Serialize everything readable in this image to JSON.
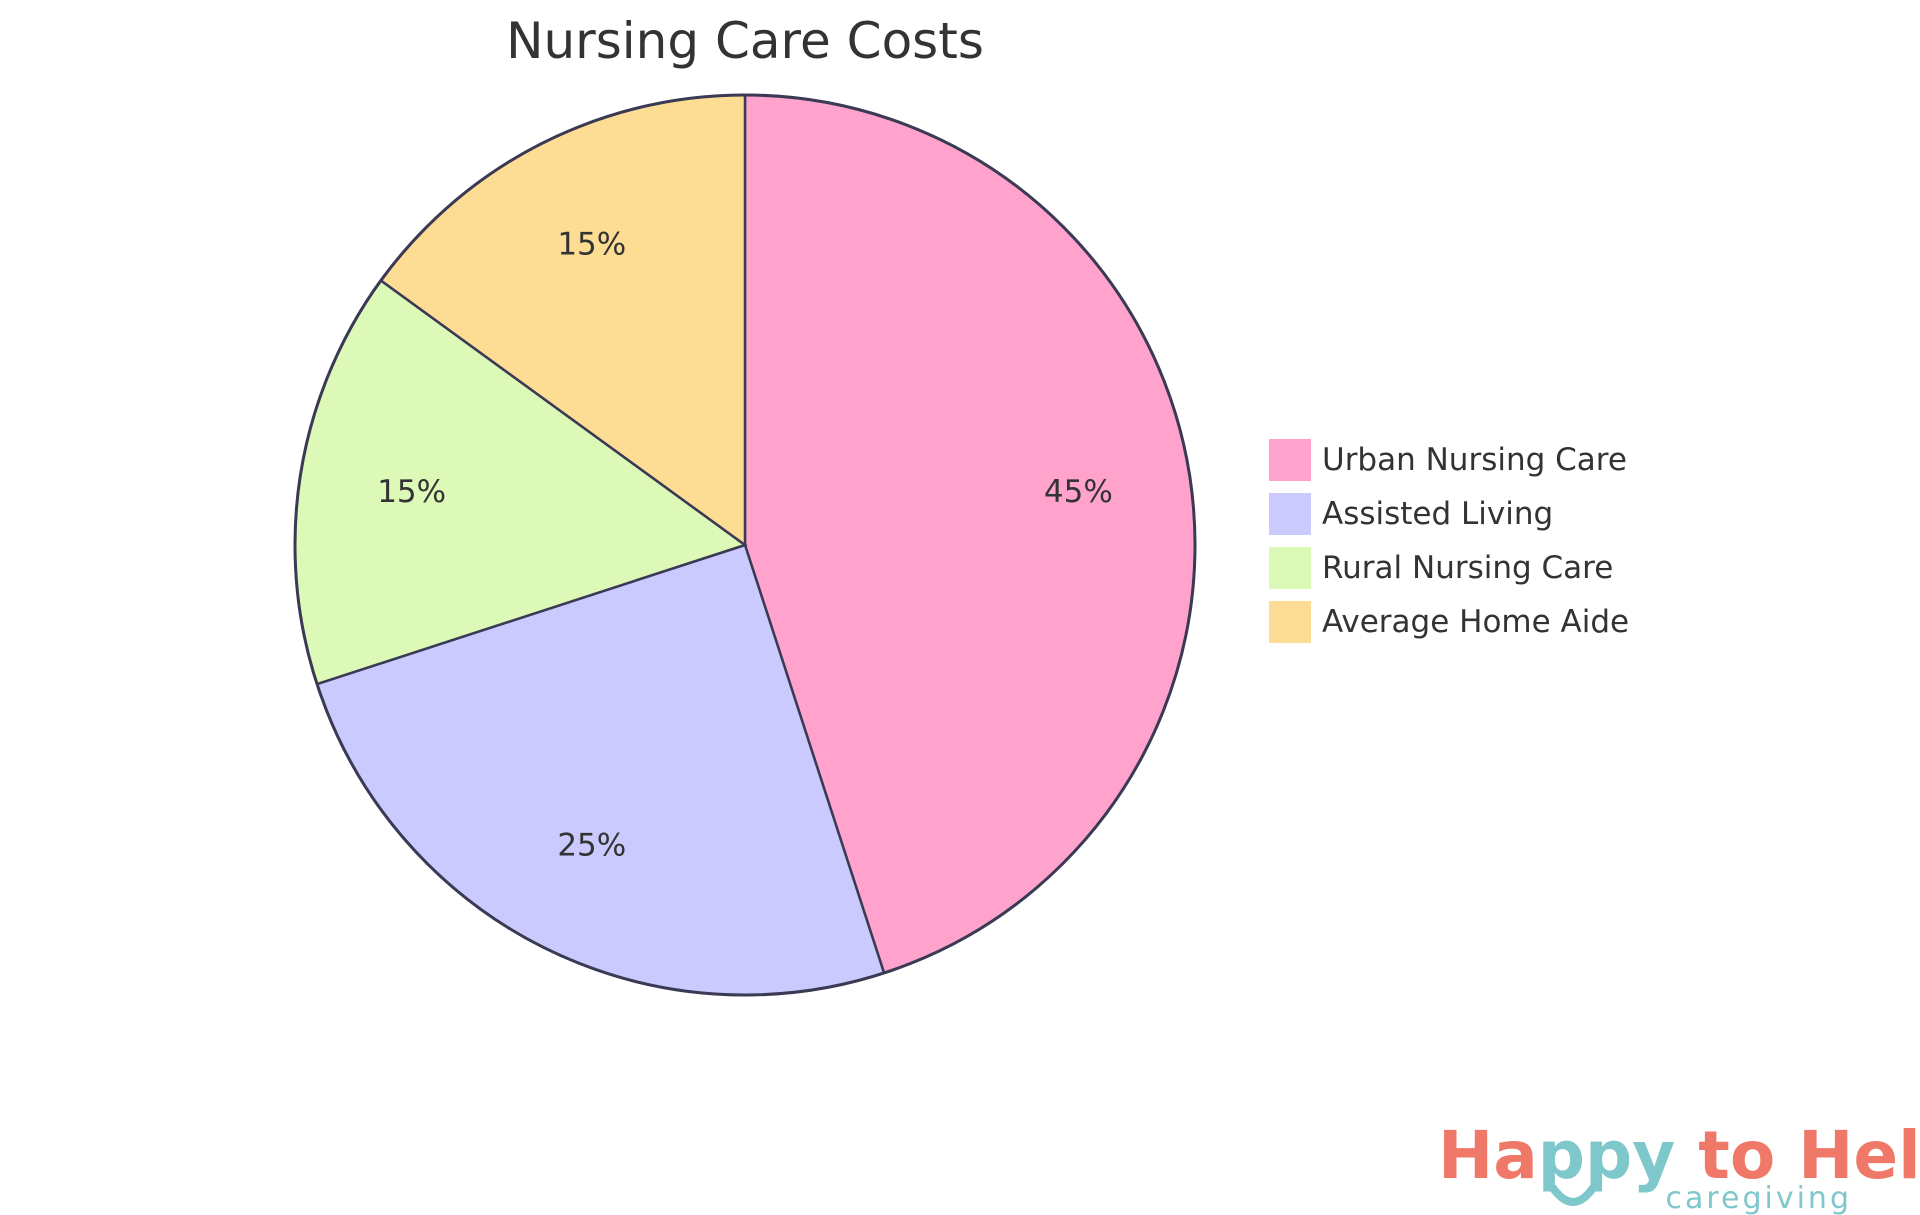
{
  "chart_data": {
    "type": "pie",
    "title": "Nursing Care Costs",
    "slices": [
      {
        "label": "Urban Nursing Care",
        "value": 45,
        "display": "45%",
        "color": "#FFA3CD"
      },
      {
        "label": "Assisted Living",
        "value": 25,
        "display": "25%",
        "color": "#CACAFF"
      },
      {
        "label": "Rural Nursing Care",
        "value": 15,
        "display": "15%",
        "color": "#DCF9B8"
      },
      {
        "label": "Average Home Aide",
        "value": 15,
        "display": "15%",
        "color": "#FDDD94"
      }
    ],
    "legend_position": "right",
    "stroke_color": "#3A3A55"
  },
  "logo": {
    "word_happy": "Happy",
    "word_to": "to",
    "word_help": "Help",
    "subtitle": "caregiving",
    "color_main": "#F07868",
    "color_accent": "#7EC8CB"
  }
}
